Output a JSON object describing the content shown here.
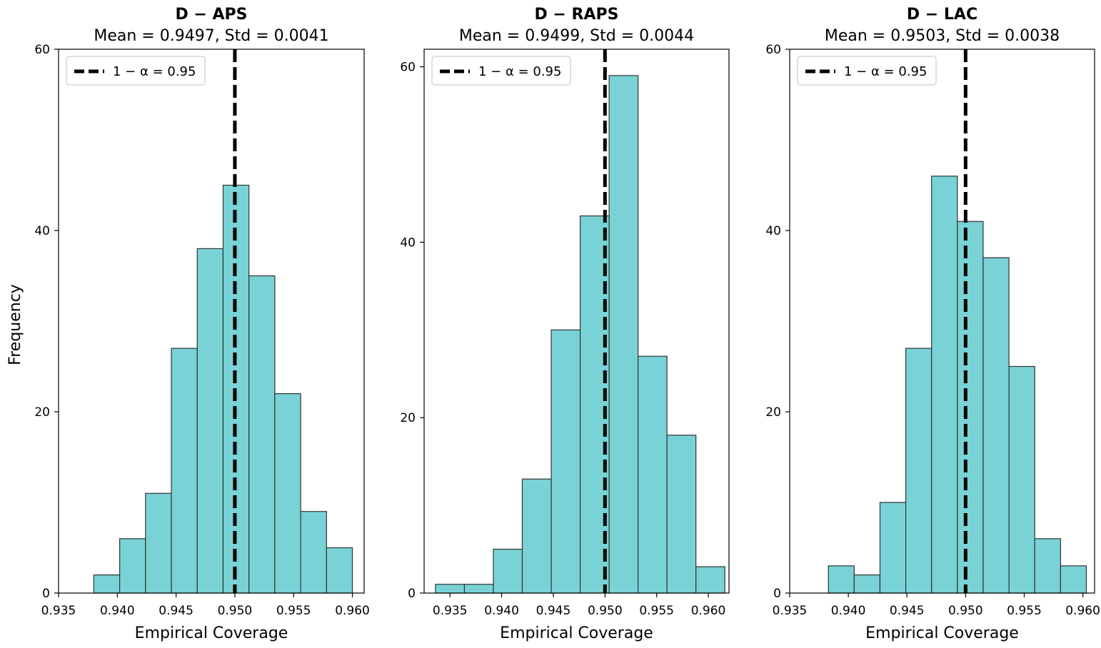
{
  "figure": {
    "ylabel": "Frequency",
    "xlabel": "Empirical Coverage"
  },
  "colors": {
    "bar_fill": "#79D2D6",
    "bar_edge": "#333333",
    "threshold_line": "#000000"
  },
  "chart_data": [
    {
      "type": "bar",
      "title": "D − APS",
      "subtitle": "Mean = 0.9497, Std = 0.0041",
      "xlabel": "Empirical Coverage",
      "ylabel": "Frequency",
      "xlim": [
        0.935,
        0.961
      ],
      "ylim": [
        0,
        60
      ],
      "xticks": [
        "0.935",
        "0.940",
        "0.945",
        "0.950",
        "0.955",
        "0.960"
      ],
      "yticks": [
        "0",
        "20",
        "40",
        "60"
      ],
      "bin_edges": [
        0.938,
        0.9402,
        0.9424,
        0.9446,
        0.9468,
        0.949,
        0.9512,
        0.9534,
        0.9556,
        0.9578,
        0.96
      ],
      "values": [
        2,
        6,
        11,
        27,
        38,
        45,
        35,
        22,
        9,
        5
      ],
      "threshold": 0.95,
      "legend": "1 − α = 0.95",
      "legend_position": "upper-left"
    },
    {
      "type": "bar",
      "title": "D − RAPS",
      "subtitle": "Mean = 0.9499, Std = 0.0044",
      "xlabel": "Empirical Coverage",
      "ylabel": "",
      "xlim": [
        0.9325,
        0.962
      ],
      "ylim": [
        0,
        62
      ],
      "xticks": [
        "0.935",
        "0.940",
        "0.945",
        "0.950",
        "0.955",
        "0.960"
      ],
      "yticks": [
        "0",
        "20",
        "40",
        "60"
      ],
      "bin_edges": [
        0.9336,
        0.9364,
        0.9392,
        0.942,
        0.9448,
        0.9476,
        0.9504,
        0.9532,
        0.956,
        0.9588,
        0.9616
      ],
      "values": [
        1,
        1,
        5,
        13,
        30,
        43,
        59,
        27,
        18,
        3
      ],
      "threshold": 0.95,
      "legend": "1 − α = 0.95",
      "legend_position": "upper-left"
    },
    {
      "type": "bar",
      "title": "D − LAC",
      "subtitle": "Mean = 0.9503, Std = 0.0038",
      "xlabel": "Empirical Coverage",
      "ylabel": "",
      "xlim": [
        0.935,
        0.961
      ],
      "ylim": [
        0,
        60
      ],
      "xticks": [
        "0.935",
        "0.940",
        "0.945",
        "0.950",
        "0.955",
        "0.960"
      ],
      "yticks": [
        "0",
        "20",
        "40",
        "60"
      ],
      "bin_edges": [
        0.9383,
        0.9405,
        0.9427,
        0.9449,
        0.9471,
        0.9493,
        0.9515,
        0.9537,
        0.9559,
        0.9581,
        0.9603
      ],
      "values": [
        3,
        2,
        10,
        27,
        46,
        41,
        37,
        25,
        6,
        3
      ],
      "threshold": 0.95,
      "legend": "1 − α = 0.95",
      "legend_position": "upper-left"
    }
  ]
}
